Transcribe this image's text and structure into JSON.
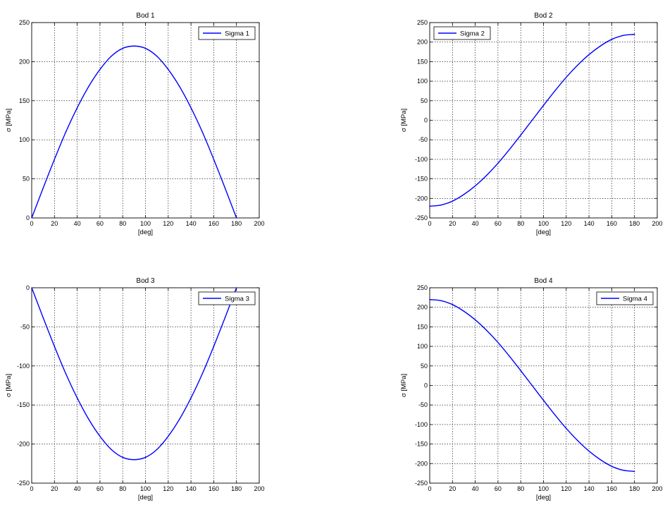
{
  "colors": {
    "line": "#0000ff",
    "axis": "#000000",
    "grid": "#000000",
    "background": "#ffffff"
  },
  "chart_data": [
    {
      "type": "line",
      "title": "Bod 1",
      "xlabel": "[deg]",
      "ylabel": "σ [MPa]",
      "xlim": [
        0,
        200
      ],
      "ylim": [
        0,
        250
      ],
      "xticks": [
        "0",
        "20",
        "40",
        "60",
        "80",
        "100",
        "120",
        "140",
        "160",
        "180",
        "200"
      ],
      "yticks": [
        "0",
        "50",
        "100",
        "150",
        "200",
        "250"
      ],
      "grid": true,
      "legend_position": "top-right",
      "series": [
        {
          "name": "Sigma 1",
          "color": "#0000ff",
          "x": [
            0,
            10,
            20,
            30,
            40,
            50,
            60,
            70,
            80,
            90,
            100,
            110,
            120,
            130,
            140,
            150,
            160,
            170,
            180
          ],
          "y": [
            0,
            38,
            75,
            110,
            141,
            168,
            190,
            207,
            217,
            220,
            217,
            207,
            190,
            168,
            141,
            110,
            75,
            38,
            0
          ]
        }
      ]
    },
    {
      "type": "line",
      "title": "Bod 2",
      "xlabel": "[deg]",
      "ylabel": "σ [MPa]",
      "xlim": [
        0,
        200
      ],
      "ylim": [
        -250,
        250
      ],
      "xticks": [
        "0",
        "20",
        "40",
        "60",
        "80",
        "100",
        "120",
        "140",
        "160",
        "180",
        "200"
      ],
      "yticks": [
        "-250",
        "-200",
        "-150",
        "-100",
        "-50",
        "0",
        "50",
        "100",
        "150",
        "200",
        "250"
      ],
      "grid": true,
      "legend_position": "top-left",
      "series": [
        {
          "name": "Sigma 2",
          "color": "#0000ff",
          "x": [
            0,
            10,
            20,
            30,
            40,
            50,
            60,
            70,
            80,
            90,
            100,
            110,
            120,
            130,
            140,
            150,
            160,
            170,
            180
          ],
          "y": [
            -220,
            -217,
            -207,
            -190,
            -168,
            -141,
            -110,
            -75,
            -38,
            0,
            38,
            75,
            110,
            141,
            168,
            190,
            207,
            217,
            220
          ]
        }
      ]
    },
    {
      "type": "line",
      "title": "Bod 3",
      "xlabel": "[deg]",
      "ylabel": "σ [MPa]",
      "xlim": [
        0,
        200
      ],
      "ylim": [
        -250,
        0
      ],
      "xticks": [
        "0",
        "20",
        "40",
        "60",
        "80",
        "100",
        "120",
        "140",
        "160",
        "180",
        "200"
      ],
      "yticks": [
        "-250",
        "-200",
        "-150",
        "-100",
        "-50",
        "0"
      ],
      "grid": true,
      "legend_position": "top-right",
      "series": [
        {
          "name": "Sigma 3",
          "color": "#0000ff",
          "x": [
            0,
            10,
            20,
            30,
            40,
            50,
            60,
            70,
            80,
            90,
            100,
            110,
            120,
            130,
            140,
            150,
            160,
            170,
            180
          ],
          "y": [
            0,
            -38,
            -75,
            -110,
            -141,
            -168,
            -190,
            -207,
            -217,
            -220,
            -217,
            -207,
            -190,
            -168,
            -141,
            -110,
            -75,
            -38,
            0
          ]
        }
      ]
    },
    {
      "type": "line",
      "title": "Bod 4",
      "xlabel": "[deg]",
      "ylabel": "σ [MPa]",
      "xlim": [
        0,
        200
      ],
      "ylim": [
        -250,
        250
      ],
      "xticks": [
        "0",
        "20",
        "40",
        "60",
        "80",
        "100",
        "120",
        "140",
        "160",
        "180",
        "200"
      ],
      "yticks": [
        "-250",
        "-200",
        "-150",
        "-100",
        "-50",
        "0",
        "50",
        "100",
        "150",
        "200",
        "250"
      ],
      "grid": true,
      "legend_position": "top-right",
      "series": [
        {
          "name": "Sigma 4",
          "color": "#0000ff",
          "x": [
            0,
            10,
            20,
            30,
            40,
            50,
            60,
            70,
            80,
            90,
            100,
            110,
            120,
            130,
            140,
            150,
            160,
            170,
            180
          ],
          "y": [
            220,
            217,
            207,
            190,
            168,
            141,
            110,
            75,
            38,
            0,
            -38,
            -75,
            -110,
            -141,
            -168,
            -190,
            -207,
            -217,
            -220
          ]
        }
      ]
    }
  ]
}
